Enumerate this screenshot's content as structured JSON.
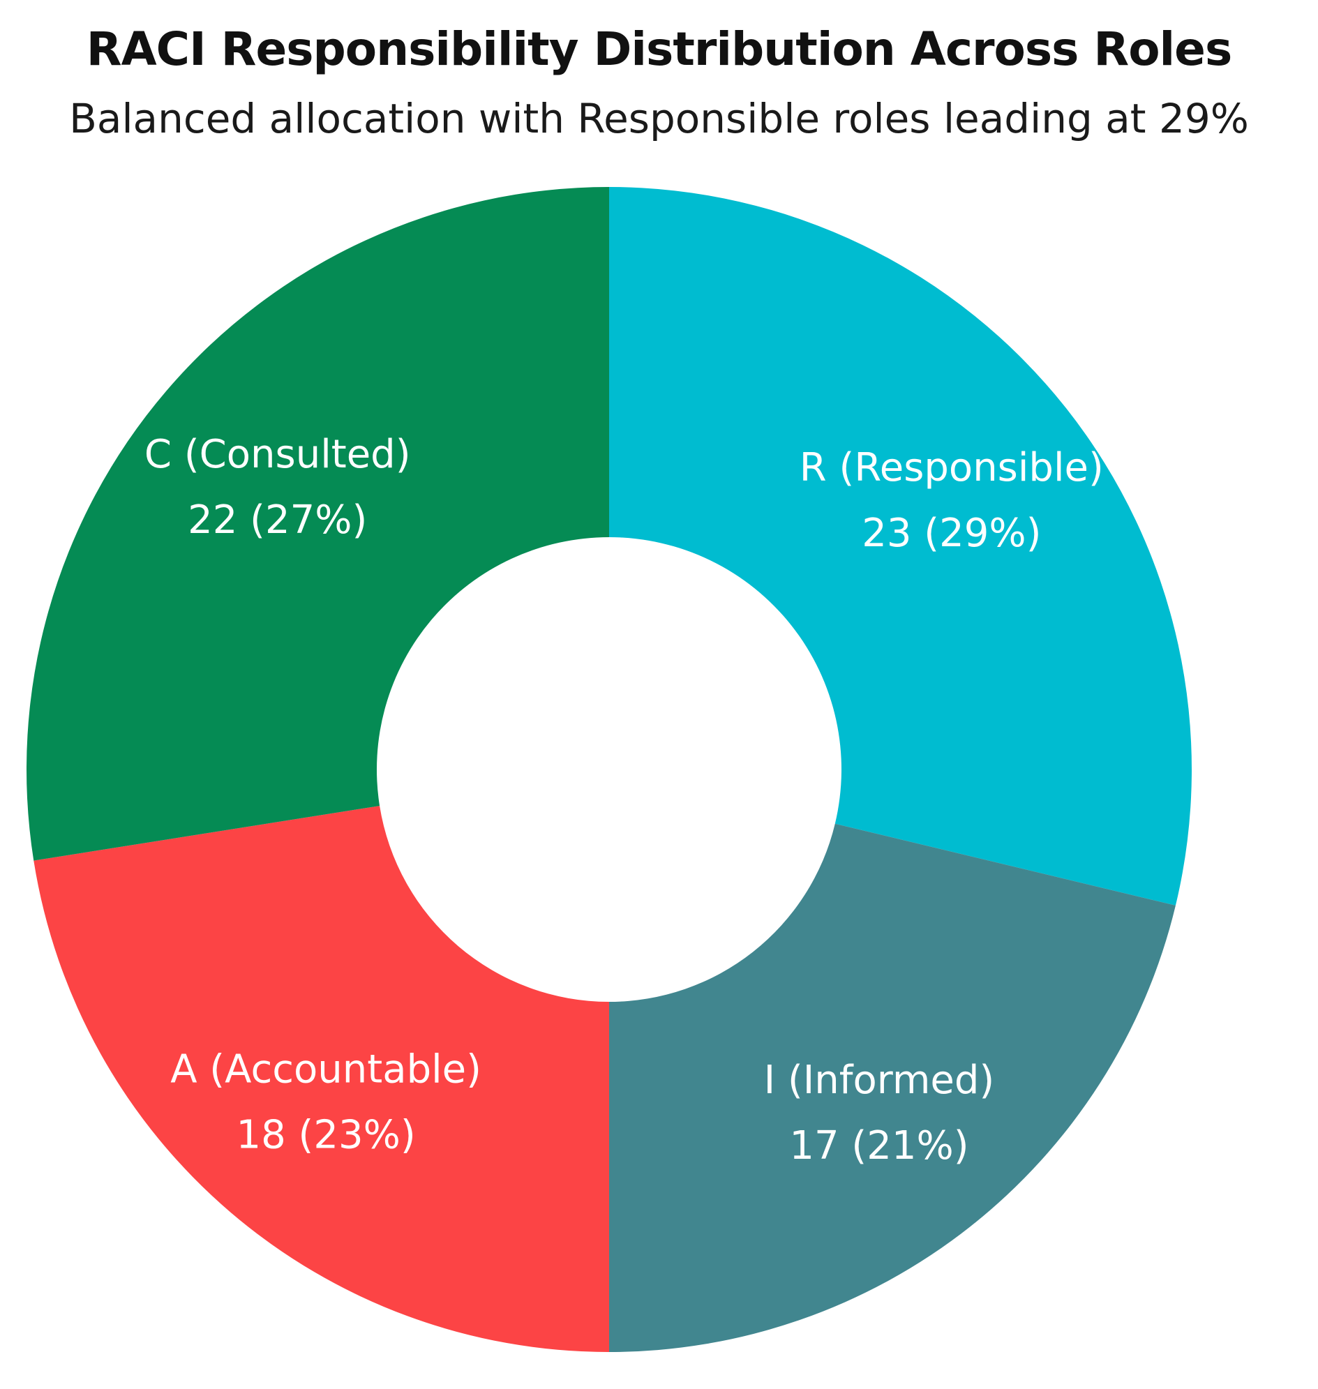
{
  "chart_data": {
    "type": "pie",
    "variant": "donut",
    "title": "RACI Responsibility Distribution Across Roles",
    "subtitle": "Balanced allocation with Responsible roles leading at 29%",
    "legend": "none",
    "start": "12 o'clock, clockwise",
    "slices": [
      {
        "label": "R (Responsible)",
        "value": 23,
        "percent": 29,
        "value_text": "23 (29%)",
        "color": "#00BCD0"
      },
      {
        "label": "I (Informed)",
        "value": 17,
        "percent": 21,
        "value_text": "17 (21%)",
        "color": "#41868F"
      },
      {
        "label": "A (Accountable)",
        "value": 18,
        "percent": 23,
        "value_text": "18 (23%)",
        "color": "#FC4445"
      },
      {
        "label": "C (Consulted)",
        "value": 22,
        "percent": 27,
        "value_text": "22 (27%)",
        "color": "#058B54"
      }
    ]
  }
}
